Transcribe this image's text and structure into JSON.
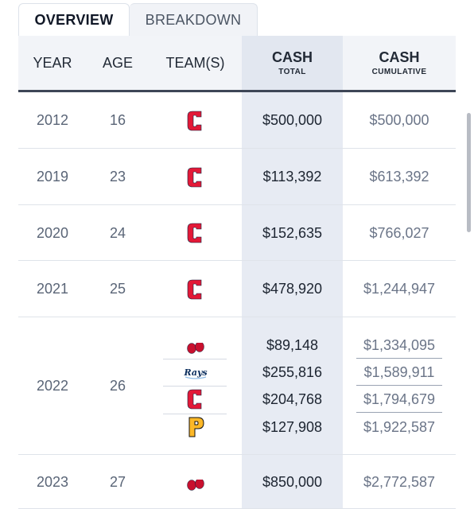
{
  "tabs": [
    {
      "label": "OVERVIEW",
      "active": true
    },
    {
      "label": "BREAKDOWN",
      "active": false
    }
  ],
  "header": {
    "year": "YEAR",
    "age": "AGE",
    "teams": "TEAM(S)",
    "cash_total_main": "CASH",
    "cash_total_sub": "TOTAL",
    "cash_cum_main": "CASH",
    "cash_cum_sub": "CUMULATIVE"
  },
  "rows": [
    {
      "year": "2012",
      "age": "16",
      "entries": [
        {
          "team": "cleveland",
          "total": "$500,000",
          "cumulative": "$500,000"
        }
      ]
    },
    {
      "year": "2019",
      "age": "23",
      "entries": [
        {
          "team": "cleveland",
          "total": "$113,392",
          "cumulative": "$613,392"
        }
      ]
    },
    {
      "year": "2020",
      "age": "24",
      "entries": [
        {
          "team": "cleveland",
          "total": "$152,635",
          "cumulative": "$766,027"
        }
      ]
    },
    {
      "year": "2021",
      "age": "25",
      "entries": [
        {
          "team": "cleveland",
          "total": "$478,920",
          "cumulative": "$1,244,947"
        }
      ]
    },
    {
      "year": "2022",
      "age": "26",
      "entries": [
        {
          "team": "boston",
          "total": "$89,148",
          "cumulative": "$1,334,095"
        },
        {
          "team": "tampa-bay",
          "total": "$255,816",
          "cumulative": "$1,589,911"
        },
        {
          "team": "cleveland",
          "total": "$204,768",
          "cumulative": "$1,794,679"
        },
        {
          "team": "pittsburgh",
          "total": "$127,908",
          "cumulative": "$1,922,587"
        }
      ]
    },
    {
      "year": "2023",
      "age": "27",
      "entries": [
        {
          "team": "boston",
          "total": "$850,000",
          "cumulative": "$2,772,587"
        }
      ]
    }
  ],
  "logos": {
    "cleveland": {
      "icon": "cleveland-c-logo-icon",
      "color": "#e31937"
    },
    "boston": {
      "icon": "boston-red-sox-logo-icon",
      "color": "#c8102e"
    },
    "tampa-bay": {
      "icon": "tampa-bay-rays-logo-icon",
      "color": "#092c5c",
      "text": "Rays"
    },
    "pittsburgh": {
      "icon": "pittsburgh-p-logo-icon",
      "color": "#fdb827"
    }
  }
}
